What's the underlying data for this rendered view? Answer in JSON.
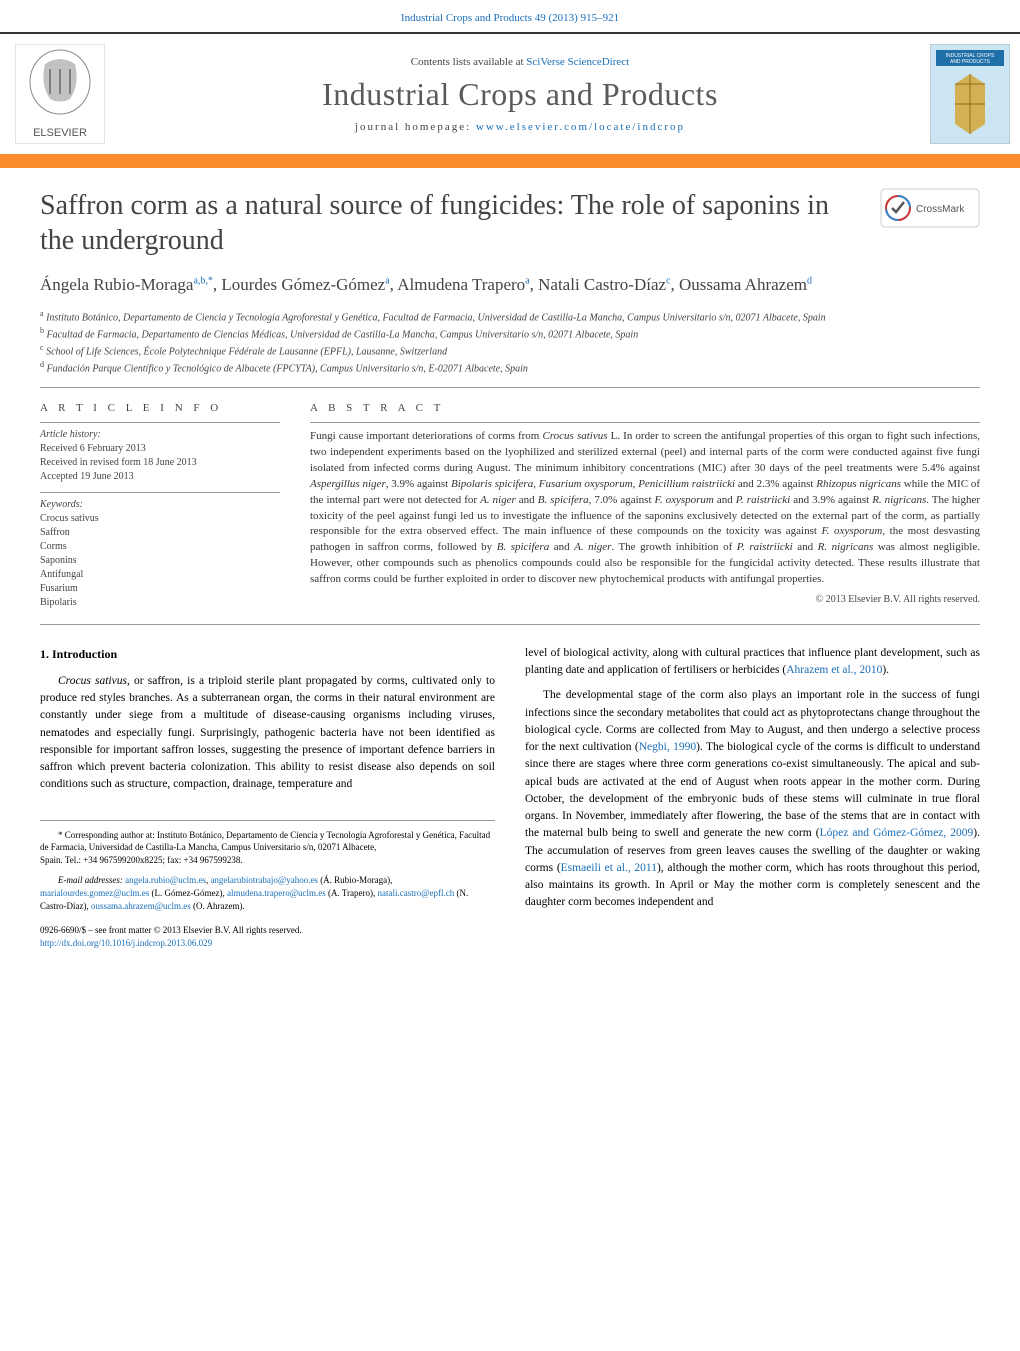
{
  "top_link": "Industrial Crops and Products 49 (2013) 915–921",
  "header": {
    "contents_prefix": "Contents lists available at ",
    "contents_link": "SciVerse ScienceDirect",
    "journal_name": "Industrial Crops and Products",
    "homepage_prefix": "journal homepage: ",
    "homepage_link": "www.elsevier.com/locate/indcrop",
    "cover_title": "INDUSTRIAL CROPS AND PRODUCTS",
    "elsevier_label": "ELSEVIER",
    "cover_bg": "#cce5f2",
    "cover_ribbon": "#1f6fa8",
    "cover_art": "#d4a22a"
  },
  "crossmark_label": "CrossMark",
  "title": "Saffron corm as a natural source of fungicides: The role of saponins in the underground",
  "authors_html": "Ángela Rubio-Moraga<sup>a,b,*</sup>, Lourdes Gómez-Gómez<sup>a</sup>, Almudena Trapero<sup>a</sup>, Natali Castro-Díaz<sup>c</sup>, Oussama Ahrazem<sup>d</sup>",
  "affiliations": [
    "<sup>a</sup> Instituto Botánico, Departamento de Ciencia y Tecnología Agroforestal y Genética, Facultad de Farmacia, Universidad de Castilla-La Mancha, Campus Universitario s/n, 02071 Albacete, Spain",
    "<sup>b</sup> Facultad de Farmacia, Departamento de Ciencias Médicas, Universidad de Castilla-La Mancha, Campus Universitario s/n, 02071 Albacete, Spain",
    "<sup>c</sup> School of Life Sciences, École Polytechnique Fédérale de Lausanne (EPFL), Lausanne, Switzerland",
    "<sup>d</sup> Fundación Parque Científico y Tecnológico de Albacete (FPCYTA), Campus Universitario s/n, E-02071 Albacete, Spain"
  ],
  "info": {
    "heading": "A R T I C L E   I N F O",
    "history_label": "Article history:",
    "history": [
      "Received 6 February 2013",
      "Received in revised form 18 June 2013",
      "Accepted 19 June 2013"
    ],
    "keywords_label": "Keywords:",
    "keywords": [
      "Crocus sativus",
      "Saffron",
      "Corms",
      "Saponins",
      "Antifungal",
      "Fusarium",
      "Bipolaris"
    ]
  },
  "abstract": {
    "heading": "A B S T R A C T",
    "text_html": "Fungi cause important deteriorations of corms from <i>Crocus sativus</i> L. In order to screen the antifungal properties of this organ to fight such infections, two independent experiments based on the lyophilized and sterilized external (peel) and internal parts of the corm were conducted against five fungi isolated from infected corms during August. The minimum inhibitory concentrations (MIC) after 30 days of the peel treatments were 5.4% against <i>Aspergillus niger</i>, 3.9% against <i>Bipolaris spicifera</i>, <i>Fusarium oxysporum</i>, <i>Penicillium raistriicki</i> and 2.3% against <i>Rhizopus nigricans</i> while the MIC of the internal part were not detected for <i>A. niger</i> and <i>B. spicifera</i>, 7.0% against <i>F. oxysporum</i> and <i>P. raistriicki</i> and 3.9% against <i>R. nigricans</i>. The higher toxicity of the peel against fungi led us to investigate the influence of the saponins exclusively detected on the external part of the corm, as partially responsible for the extra observed effect. The main influence of these compounds on the toxicity was against <i>F. oxysporum</i>, the most desvasting pathogen in saffron corms, followed by <i>B. spicifera</i> and <i>A. niger</i>. The growth inhibition of <i>P. raistriicki</i> and <i>R. nigricans</i> was almost negligible. However, other compounds such as phenolics compounds could also be responsible for the fungicidal activity detected. These results illustrate that saffron corms could be further exploited in order to discover new phytochemical products with antifungal properties.",
    "copyright": "© 2013 Elsevier B.V. All rights reserved."
  },
  "body": {
    "section_heading": "1.  Introduction",
    "col_left_html": "<p><i>Crocus sativus</i>, or saffron, is a triploid sterile plant propagated by corms, cultivated only to produce red styles branches. As a subterranean organ, the corms in their natural environment are constantly under siege from a multitude of disease-causing organisms including viruses, nematodes and especially fungi. Surprisingly, pathogenic bacteria have not been identified as responsible for important saffron losses, suggesting the presence of important defence barriers in saffron which prevent bacteria colonization. This ability to resist disease also depends on soil conditions such as structure, compaction, drainage, temperature and</p>",
    "col_right_html": "<p>level of biological activity, along with cultural practices that influence plant development, such as planting date and application of fertilisers or herbicides (<a href='#'>Ahrazem et al., 2010</a>).</p><p>The developmental stage of the corm also plays an important role in the success of fungi infections since the secondary metabolites that could act as phytoprotectans change throughout the biological cycle. Corms are collected from May to August, and then undergo a selective process for the next cultivation (<a href='#'>Negbi, 1990</a>). The biological cycle of the corms is difficult to understand since there are stages where three corm generations co-exist simultaneously. The apical and sub-apical buds are activated at the end of August when roots appear in the mother corm. During October, the development of the embryonic buds of these stems will culminate in true floral organs. In November, immediately after flowering, the base of the stems that are in contact with the maternal bulb being to swell and generate the new corm (<a href='#'>López and Gómez-Gómez, 2009</a>). The accumulation of reserves from green leaves causes the swelling of the daughter or waking corms (<a href='#'>Esmaeili et al., 2011</a>), although the mother corm, which has roots throughout this period, also maintains its growth. In April or May the mother corm is completely senescent and the daughter corm becomes independent and</p>"
  },
  "footnotes_html": "<p>* Corresponding author at: Instituto Botánico, Departamento de Ciencia y Tecnología Agroforestal y Genética, Facultad de Farmacia, Universidad de Castilla-La Mancha, Campus Universitario s/n, 02071 Albacete,<br>Spain. Tel.: +34 967599200x8225; fax: +34 967599238.</p><p><i>E-mail addresses:</i> <a href='#'>angela.rubio@uclm.es</a>, <a href='#'>angelarubiotrabajo@yahoo.es</a> (Á. Rubio-Moraga), <a href='#'>marialourdes.gomez@uclm.es</a> (L. Gómez-Gómez), <a href='#'>almudena.trapero@uclm.es</a> (A. Trapero), <a href='#'>natali.castro@epfl.ch</a> (N. Castro-Díaz), <a href='#'>oussama.ahrazem@uclm.es</a> (O. Ahrazem).</p>",
  "footer": {
    "line1": "0926-6690/$ – see front matter © 2013 Elsevier B.V. All rights reserved.",
    "doi": "http://dx.doi.org/10.1016/j.indcrop.2013.06.029"
  },
  "colors": {
    "link": "#1a6fb8",
    "orange": "#fa8c2b",
    "text": "#333333",
    "elsevier_orange": "#ff6a13"
  }
}
